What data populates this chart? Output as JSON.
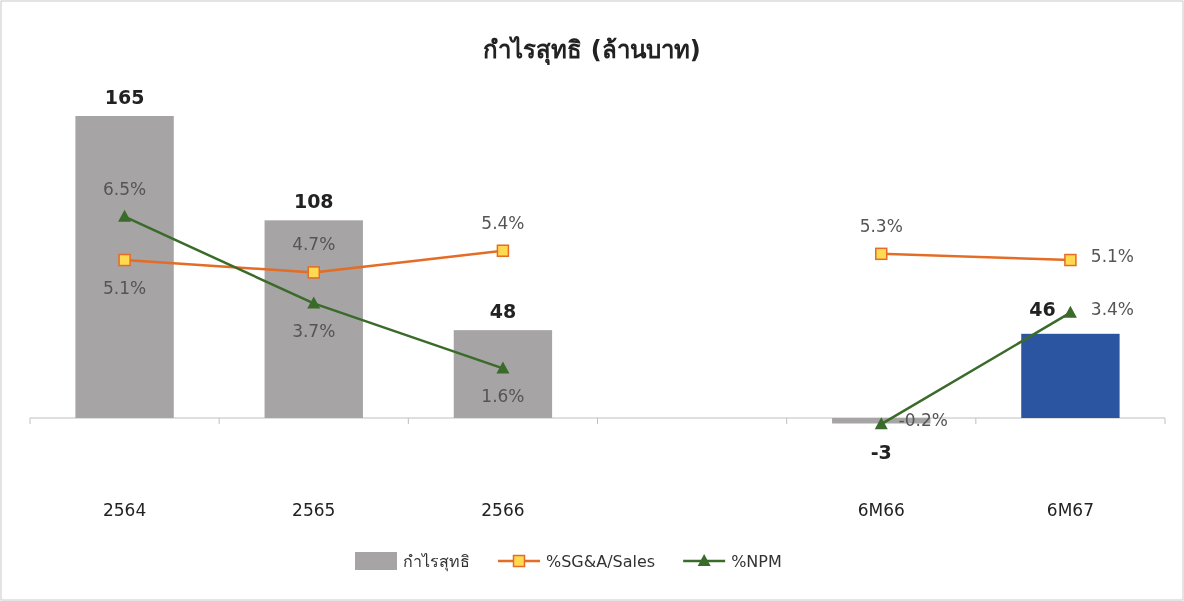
{
  "chart_data": {
    "type": "bar",
    "title": "กำไรสุทธิ (ล้านบาท)",
    "categories": [
      "2564",
      "2565",
      "2566",
      null,
      "6M66",
      "6M67"
    ],
    "series": [
      {
        "name": "กำไรสุทธิ",
        "colors": [
          "#a6a4a4",
          "#a6a4a4",
          "#a6a4a4",
          null,
          "#a6a4a4",
          "#2b55a1"
        ],
        "values": [
          165,
          108,
          48,
          null,
          -3,
          46
        ]
      },
      {
        "name": "%SG&A/Sales",
        "type": "line",
        "axis": "y2",
        "color": "#e46c24",
        "marker": "square",
        "values": [
          5.1,
          4.7,
          5.4,
          null,
          5.3,
          5.1
        ],
        "value_labels": [
          "5.1%",
          "4.7%",
          "5.4%",
          null,
          "5.3%",
          "5.1%"
        ]
      },
      {
        "name": "%NPM",
        "type": "line",
        "axis": "y2",
        "color": "#3a6b2a",
        "marker": "triangle",
        "values": [
          6.5,
          3.7,
          1.6,
          null,
          -0.2,
          3.4
        ],
        "value_labels": [
          "6.5%",
          "3.7%",
          "1.6%",
          null,
          "-0.2%",
          "3.4%"
        ]
      }
    ],
    "data_labels": true,
    "legend": "bottom"
  }
}
